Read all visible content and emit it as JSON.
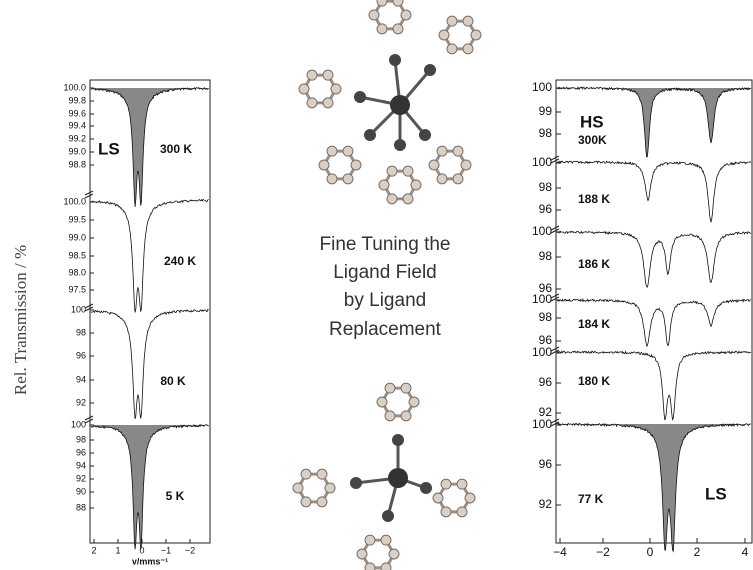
{
  "left_panel": {
    "y_axis_title": "Rel. Transmission / %",
    "x_axis_label": "v/mms⁻¹",
    "x_ticks": [
      "2",
      "1",
      "0",
      "−1",
      "−2"
    ],
    "subpanels": [
      {
        "label": "LS",
        "temperature": "300 K",
        "y_ticks": [
          "100.0",
          "99.8",
          "99.6",
          "99.4",
          "99.2",
          "99.0",
          "98.8"
        ]
      },
      {
        "temperature": "240 K",
        "y_ticks": [
          "100.0",
          "99.5",
          "99.0",
          "98.5",
          "98.0",
          "97.5"
        ]
      },
      {
        "temperature": "80 K",
        "y_ticks": [
          "100",
          "98",
          "96",
          "94",
          "92"
        ]
      },
      {
        "temperature": "5 K",
        "y_ticks": [
          "100",
          "98",
          "96",
          "94",
          "92",
          "90",
          "88"
        ]
      }
    ]
  },
  "center_text": [
    "Fine Tuning the",
    "Ligand Field",
    "by Ligand",
    "Replacement"
  ],
  "right_panel": {
    "x_ticks": [
      "−4",
      "−2",
      "0",
      "2",
      "4"
    ],
    "subpanels": [
      {
        "label": "HS",
        "temperature": "300K",
        "y_ticks": [
          "100",
          "99",
          "98"
        ]
      },
      {
        "temperature": "188 K",
        "y_ticks": [
          "100",
          "98",
          "96"
        ]
      },
      {
        "temperature": "186 K",
        "y_ticks": [
          "100",
          "98",
          "96"
        ]
      },
      {
        "temperature": "184 K",
        "y_ticks": [
          "100",
          "98",
          "96"
        ]
      },
      {
        "temperature": "180 K",
        "y_ticks": [
          "100",
          "96",
          "92"
        ]
      },
      {
        "label": "LS",
        "temperature": "77 K",
        "y_ticks": [
          "100",
          "96",
          "92"
        ]
      }
    ]
  }
}
